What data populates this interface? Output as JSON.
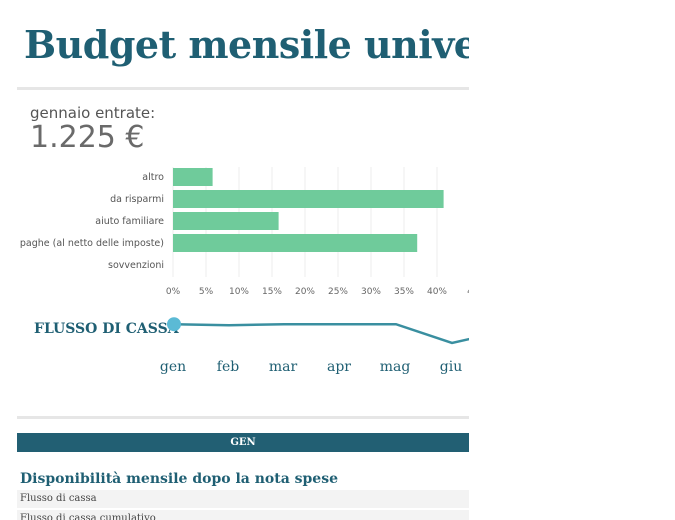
{
  "header": {
    "title": "Budget mensile univers"
  },
  "income": {
    "label": "gennaio entrate:",
    "value": "1.225 €"
  },
  "chart_data": [
    {
      "type": "bar",
      "orientation": "horizontal",
      "categories": [
        "altro",
        "da risparmi",
        "aiuto familiare",
        "paghe (al netto delle imposte)",
        "sovvenzioni"
      ],
      "values": [
        6,
        41,
        16,
        37,
        0
      ],
      "xticks": [
        "0%",
        "5%",
        "10%",
        "15%",
        "20%",
        "25%",
        "30%",
        "35%",
        "40%",
        "4"
      ],
      "xlim": [
        0,
        45
      ],
      "unit": "%",
      "grid": true,
      "color": "#6fcb9b"
    },
    {
      "type": "line",
      "title": "FLUSSO DI CASSA",
      "categories": [
        "gen",
        "feb",
        "mar",
        "apr",
        "mag",
        "giu"
      ],
      "values": [
        0,
        -1,
        0,
        0,
        0,
        -18
      ],
      "ylim": [
        -20,
        5
      ],
      "color": "#3a8fa0",
      "marker_color": "#5bbad5"
    }
  ],
  "section": {
    "header": "GEN",
    "title": "Disponibilità mensile dopo la nota spese"
  },
  "table": {
    "rows": [
      "Flusso di cassa",
      "Flusso di cassa cumulativo"
    ]
  },
  "colors": {
    "accent": "#1f5f73",
    "header_bg": "#225f73",
    "bar": "#6fcb9b",
    "line": "#3a8fa0"
  }
}
